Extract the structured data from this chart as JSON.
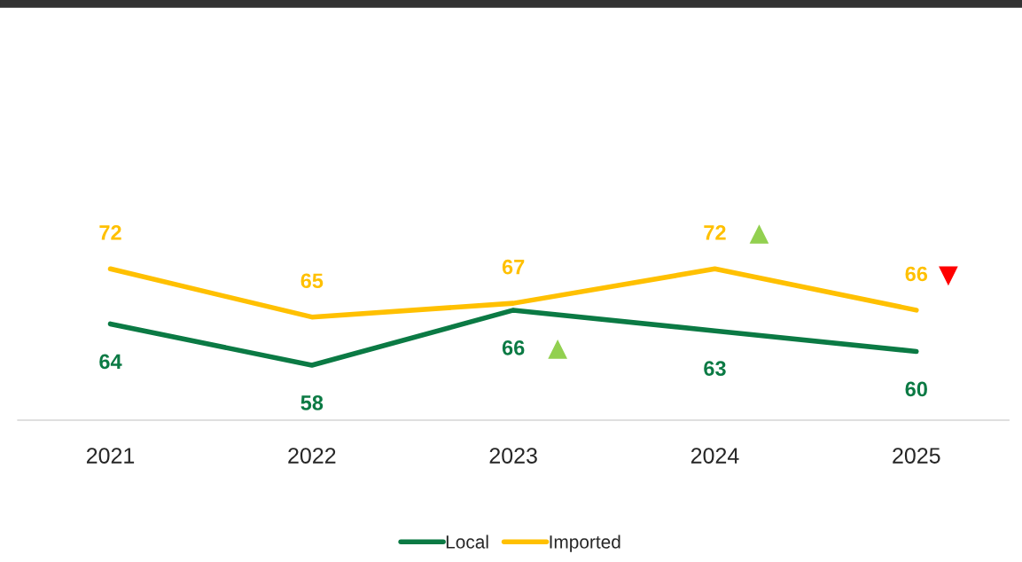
{
  "chart_data": {
    "type": "line",
    "categories": [
      "2021",
      "2022",
      "2023",
      "2024",
      "2025"
    ],
    "series": [
      {
        "name": "Local",
        "color": "#0b7a44",
        "values": [
          64,
          58,
          66,
          63,
          60
        ]
      },
      {
        "name": "Imported",
        "color": "#ffc000",
        "values": [
          72,
          65,
          67,
          72,
          66
        ]
      }
    ],
    "tick_labels": "x",
    "data_labels": true,
    "legend": "bottom",
    "grid": false,
    "marker": "none",
    "line_style": "solid"
  }
}
